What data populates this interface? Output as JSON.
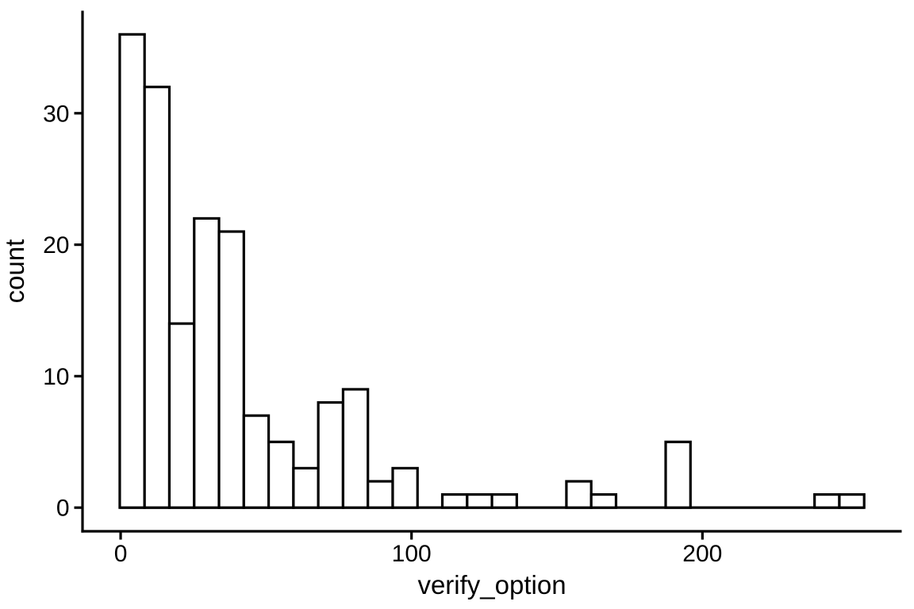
{
  "chart_data": {
    "type": "bar",
    "subtype": "histogram",
    "title": "",
    "xlabel": "verify_option",
    "ylabel": "count",
    "x_ticks": [
      0,
      100,
      200
    ],
    "y_ticks": [
      0,
      10,
      20,
      30
    ],
    "xlim": [
      -13.1,
      268.5
    ],
    "ylim": [
      -1.8,
      37.8
    ],
    "bin_start": -0.3,
    "binwidth": 8.53,
    "counts": [
      36,
      32,
      14,
      22,
      21,
      7,
      5,
      3,
      8,
      9,
      2,
      3,
      0,
      1,
      1,
      1,
      0,
      0,
      2,
      1,
      0,
      0,
      5,
      0,
      0,
      0,
      0,
      0,
      1,
      1
    ],
    "n_bins": 30,
    "grid": "off",
    "legend": "none",
    "colors": {
      "bar_fill": "#ffffff",
      "bar_stroke": "#000000",
      "axis_line": "#000000",
      "text": "#000000",
      "background": "#ffffff"
    }
  }
}
